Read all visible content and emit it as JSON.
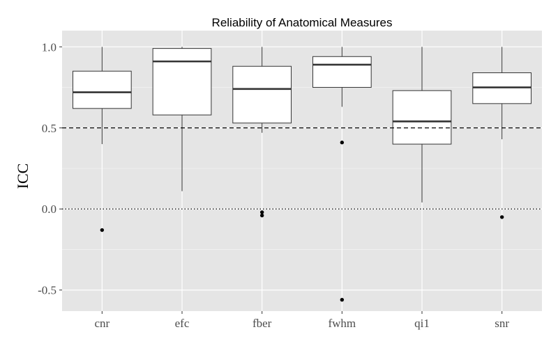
{
  "chart_data": {
    "type": "boxplot",
    "title": "Reliability of Anatomical Measures",
    "xlabel": "",
    "ylabel": "ICC",
    "ylim": [
      -0.63,
      1.1
    ],
    "yticks": [
      {
        "value": -0.5,
        "label": "-0.5"
      },
      {
        "value": 0.0,
        "label": "0.0"
      },
      {
        "value": 0.5,
        "label": "0.5"
      },
      {
        "value": 1.0,
        "label": "1.0"
      }
    ],
    "categories": [
      "cnr",
      "efc",
      "fber",
      "fwhm",
      "qi1",
      "snr"
    ],
    "boxes": [
      {
        "whisker_low": 0.4,
        "q1": 0.62,
        "median": 0.72,
        "q3": 0.85,
        "whisker_high": 1.0,
        "outliers": [
          -0.13
        ]
      },
      {
        "whisker_low": 0.11,
        "q1": 0.58,
        "median": 0.91,
        "q3": 0.99,
        "whisker_high": 1.0,
        "outliers": []
      },
      {
        "whisker_low": 0.47,
        "q1": 0.53,
        "median": 0.74,
        "q3": 0.88,
        "whisker_high": 1.0,
        "outliers": [
          -0.02,
          -0.04
        ]
      },
      {
        "whisker_low": 0.63,
        "q1": 0.75,
        "median": 0.89,
        "q3": 0.94,
        "whisker_high": 1.0,
        "outliers": [
          0.41,
          -0.56
        ]
      },
      {
        "whisker_low": 0.04,
        "q1": 0.4,
        "median": 0.54,
        "q3": 0.73,
        "whisker_high": 1.0,
        "outliers": []
      },
      {
        "whisker_low": 0.43,
        "q1": 0.65,
        "median": 0.75,
        "q3": 0.84,
        "whisker_high": 1.0,
        "outliers": [
          -0.05
        ]
      }
    ],
    "reference_lines": [
      {
        "value": 0.5,
        "style": "dashed"
      },
      {
        "value": 0.0,
        "style": "dotted"
      }
    ],
    "grid": true,
    "legend": "none",
    "panel_color": "#e5e5e5",
    "grid_color": "#ffffff",
    "box_fill": "#ffffff",
    "line_color": "#333333"
  }
}
